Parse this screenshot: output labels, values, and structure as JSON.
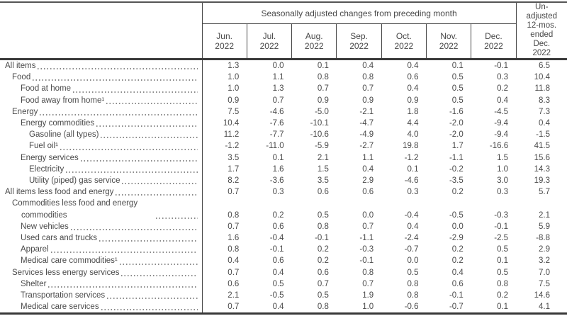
{
  "table": {
    "header": {
      "spanner": "Seasonally adjusted changes from preceding month",
      "months": [
        {
          "month": "Jun.",
          "year": "2022"
        },
        {
          "month": "Jul.",
          "year": "2022"
        },
        {
          "month": "Aug.",
          "year": "2022"
        },
        {
          "month": "Sep.",
          "year": "2022"
        },
        {
          "month": "Oct.",
          "year": "2022"
        },
        {
          "month": "Nov.",
          "year": "2022"
        },
        {
          "month": "Dec.",
          "year": "2022"
        }
      ],
      "unadjusted_label": "Un-adjusted 12-mos. ended Dec. 2022"
    },
    "rows": [
      {
        "label": "All items",
        "level": 0,
        "values": [
          "1.3",
          "0.0",
          "0.1",
          "0.4",
          "0.4",
          "0.1",
          "-0.1",
          "6.5"
        ]
      },
      {
        "label": "Food",
        "level": 1,
        "values": [
          "1.0",
          "1.1",
          "0.8",
          "0.8",
          "0.6",
          "0.5",
          "0.3",
          "10.4"
        ]
      },
      {
        "label": "Food at home",
        "level": 2,
        "values": [
          "1.0",
          "1.3",
          "0.7",
          "0.7",
          "0.4",
          "0.5",
          "0.2",
          "11.8"
        ]
      },
      {
        "label": "Food away from home¹",
        "level": 2,
        "values": [
          "0.9",
          "0.7",
          "0.9",
          "0.9",
          "0.9",
          "0.5",
          "0.4",
          "8.3"
        ]
      },
      {
        "label": "Energy",
        "level": 1,
        "values": [
          "7.5",
          "-4.6",
          "-5.0",
          "-2.1",
          "1.8",
          "-1.6",
          "-4.5",
          "7.3"
        ]
      },
      {
        "label": "Energy commodities",
        "level": 2,
        "values": [
          "10.4",
          "-7.6",
          "-10.1",
          "-4.7",
          "4.4",
          "-2.0",
          "-9.4",
          "0.4"
        ]
      },
      {
        "label": "Gasoline (all types)",
        "level": 3,
        "values": [
          "11.2",
          "-7.7",
          "-10.6",
          "-4.9",
          "4.0",
          "-2.0",
          "-9.4",
          "-1.5"
        ]
      },
      {
        "label": "Fuel oil¹",
        "level": 3,
        "values": [
          "-1.2",
          "-11.0",
          "-5.9",
          "-2.7",
          "19.8",
          "1.7",
          "-16.6",
          "41.5"
        ]
      },
      {
        "label": "Energy services",
        "level": 2,
        "values": [
          "3.5",
          "0.1",
          "2.1",
          "1.1",
          "-1.2",
          "-1.1",
          "1.5",
          "15.6"
        ]
      },
      {
        "label": "Electricity",
        "level": 3,
        "values": [
          "1.7",
          "1.6",
          "1.5",
          "0.4",
          "0.1",
          "-0.2",
          "1.0",
          "14.3"
        ]
      },
      {
        "label": "Utility (piped) gas service",
        "level": 3,
        "values": [
          "8.2",
          "-3.6",
          "3.5",
          "2.9",
          "-4.6",
          "-3.5",
          "3.0",
          "19.3"
        ]
      },
      {
        "label": "All items less food and energy",
        "level": 0,
        "values": [
          "0.7",
          "0.3",
          "0.6",
          "0.6",
          "0.3",
          "0.2",
          "0.3",
          "5.7"
        ]
      },
      {
        "label": "Commodities less food and energy commodities",
        "level": 1,
        "values": [
          "0.8",
          "0.2",
          "0.5",
          "0.0",
          "-0.4",
          "-0.5",
          "-0.3",
          "2.1"
        ]
      },
      {
        "label": "New vehicles",
        "level": 2,
        "values": [
          "0.7",
          "0.6",
          "0.8",
          "0.7",
          "0.4",
          "0.0",
          "-0.1",
          "5.9"
        ]
      },
      {
        "label": "Used cars and trucks",
        "level": 2,
        "values": [
          "1.6",
          "-0.4",
          "-0.1",
          "-1.1",
          "-2.4",
          "-2.9",
          "-2.5",
          "-8.8"
        ]
      },
      {
        "label": "Apparel",
        "level": 2,
        "values": [
          "0.8",
          "-0.1",
          "0.2",
          "-0.3",
          "-0.7",
          "0.2",
          "0.5",
          "2.9"
        ]
      },
      {
        "label": "Medical care commodities¹",
        "level": 2,
        "values": [
          "0.4",
          "0.6",
          "0.2",
          "-0.1",
          "0.0",
          "0.2",
          "0.1",
          "3.2"
        ]
      },
      {
        "label": "Services less energy services",
        "level": 1,
        "values": [
          "0.7",
          "0.4",
          "0.6",
          "0.8",
          "0.5",
          "0.4",
          "0.5",
          "7.0"
        ]
      },
      {
        "label": "Shelter",
        "level": 2,
        "values": [
          "0.6",
          "0.5",
          "0.7",
          "0.7",
          "0.8",
          "0.6",
          "0.8",
          "7.5"
        ]
      },
      {
        "label": "Transportation services",
        "level": 2,
        "values": [
          "2.1",
          "-0.5",
          "0.5",
          "1.9",
          "0.8",
          "-0.1",
          "0.2",
          "14.6"
        ]
      },
      {
        "label": "Medical care services",
        "level": 2,
        "values": [
          "0.7",
          "0.4",
          "0.8",
          "1.0",
          "-0.6",
          "-0.7",
          "0.1",
          "4.1"
        ]
      }
    ]
  }
}
